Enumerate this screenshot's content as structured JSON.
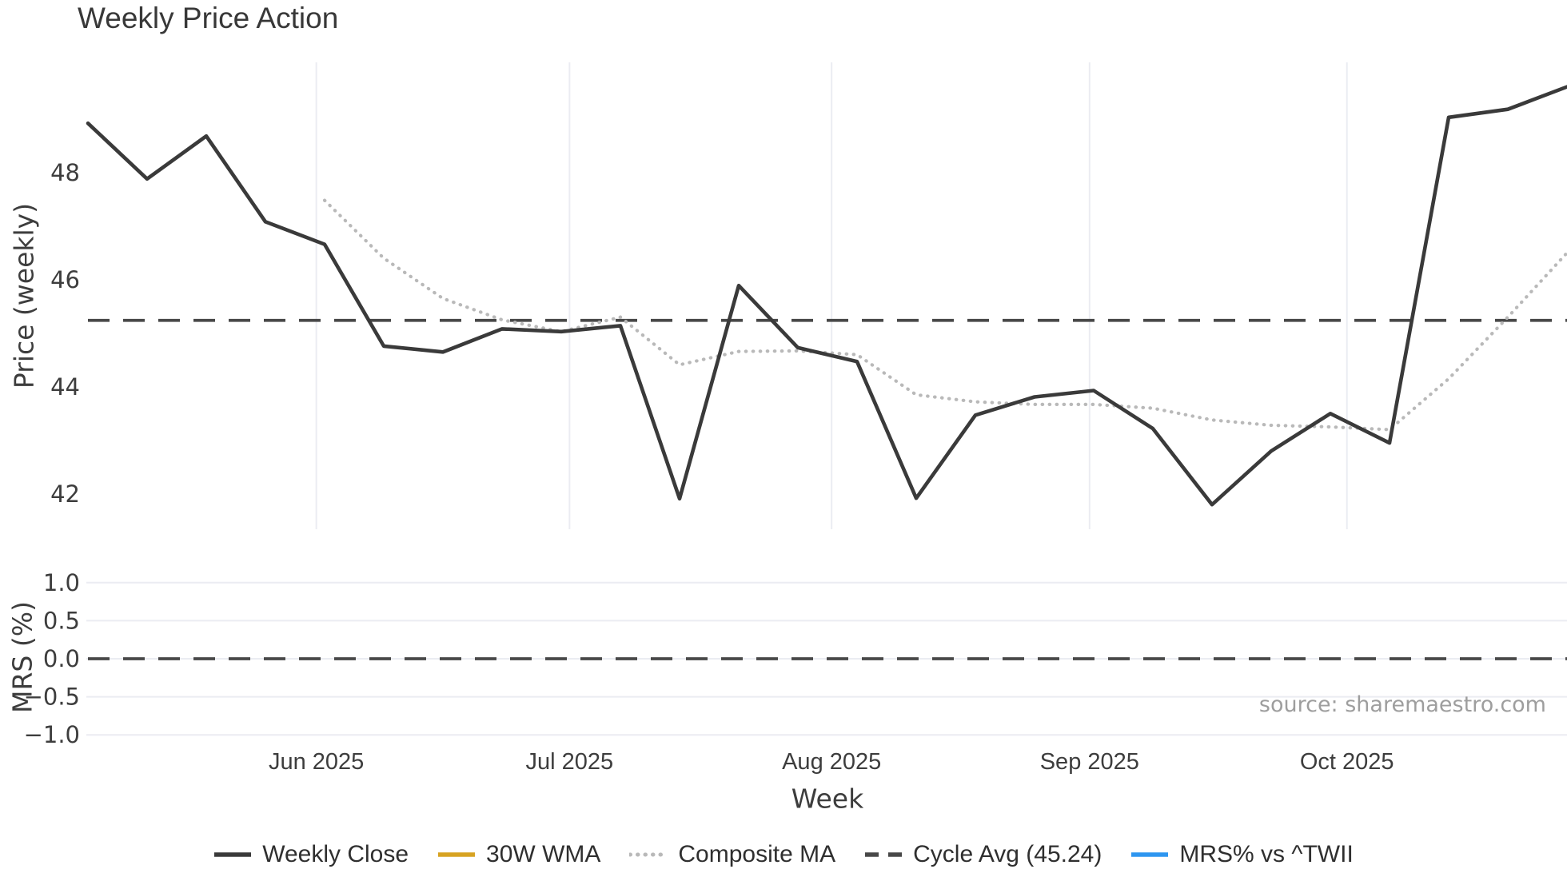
{
  "title": "Weekly Price Action",
  "source": "source: sharemaestro.com",
  "axes": {
    "price_label": "Price (weekly)",
    "mrs_label": "MRS (%)",
    "x_label": "Week"
  },
  "legend": [
    {
      "label": "Weekly Close",
      "style": "solid",
      "color": "#3a3a3a"
    },
    {
      "label": "30W WMA",
      "style": "solid",
      "color": "#d7a322"
    },
    {
      "label": "Composite MA",
      "style": "dotted",
      "color": "#b9b9b9"
    },
    {
      "label": "Cycle Avg (45.24)",
      "style": "dashed",
      "color": "#484848"
    },
    {
      "label": "MRS% vs ^TWII",
      "style": "solid",
      "color": "#2e96f0"
    }
  ],
  "chart_data": [
    {
      "type": "line",
      "title": "Weekly Price Action",
      "xlabel": "Week",
      "ylabel": "Price (weekly)",
      "x_unit": "week_index",
      "x": [
        0,
        1,
        2,
        3,
        4,
        5,
        6,
        7,
        8,
        9,
        10,
        11,
        12,
        13,
        14,
        15,
        16,
        17,
        18,
        19,
        20,
        21,
        22,
        23,
        24,
        25
      ],
      "series": [
        {
          "name": "Weekly Close",
          "style": "solid",
          "color": "#3a3a3a",
          "values": [
            48.92,
            47.88,
            48.68,
            47.08,
            46.66,
            44.76,
            44.65,
            45.08,
            45.03,
            45.14,
            41.91,
            45.89,
            44.73,
            44.47,
            41.92,
            43.47,
            43.81,
            43.93,
            43.22,
            41.8,
            42.8,
            43.5,
            42.95,
            49.03,
            49.18,
            49.6
          ]
        },
        {
          "name": "30W WMA",
          "style": "solid",
          "color": "#d7a322",
          "values": [
            null,
            null,
            null,
            null,
            null,
            null,
            null,
            null,
            null,
            null,
            null,
            null,
            null,
            null,
            null,
            null,
            null,
            null,
            null,
            null,
            null,
            null,
            null,
            null,
            null,
            null
          ]
        },
        {
          "name": "Composite MA",
          "style": "dotted",
          "color": "#b9b9b9",
          "values": [
            null,
            null,
            null,
            null,
            47.48,
            46.4,
            45.65,
            45.25,
            45.03,
            45.3,
            44.41,
            44.66,
            44.67,
            44.6,
            43.85,
            43.72,
            43.67,
            43.67,
            43.6,
            43.38,
            43.28,
            43.25,
            43.2,
            44.15,
            45.3,
            46.5
          ]
        },
        {
          "name": "Cycle Avg (45.24)",
          "style": "dashed",
          "color": "#484848",
          "constant": 45.24
        }
      ],
      "yticks": [
        42,
        44,
        46,
        48
      ],
      "ylim": [
        41.4,
        50.0
      ],
      "month_ticks": [
        {
          "label": "Jun 2025",
          "week_pos": 3.86
        },
        {
          "label": "Jul 2025",
          "week_pos": 8.14
        },
        {
          "label": "Aug 2025",
          "week_pos": 12.57
        },
        {
          "label": "Sep 2025",
          "week_pos": 16.93
        },
        {
          "label": "Oct 2025",
          "week_pos": 21.28
        }
      ],
      "grid": "vertical-months",
      "legend_position": "bottom-center"
    },
    {
      "type": "line",
      "ylabel": "MRS (%)",
      "series": [
        {
          "name": "MRS% vs ^TWII",
          "style": "solid",
          "color": "#2e96f0",
          "values": [
            null,
            null,
            null,
            null,
            null,
            null,
            null,
            null,
            null,
            null,
            null,
            null,
            null,
            null,
            null,
            null,
            null,
            null,
            null,
            null,
            null,
            null,
            null,
            null,
            null,
            null
          ]
        },
        {
          "name": "Zero line",
          "style": "dashed",
          "color": "#484848",
          "constant": 0.0
        }
      ],
      "yticks": [
        -1.0,
        -0.5,
        0.0,
        0.5,
        1.0
      ],
      "ylim": [
        -1.25,
        1.25
      ],
      "grid": "horizontal"
    }
  ]
}
